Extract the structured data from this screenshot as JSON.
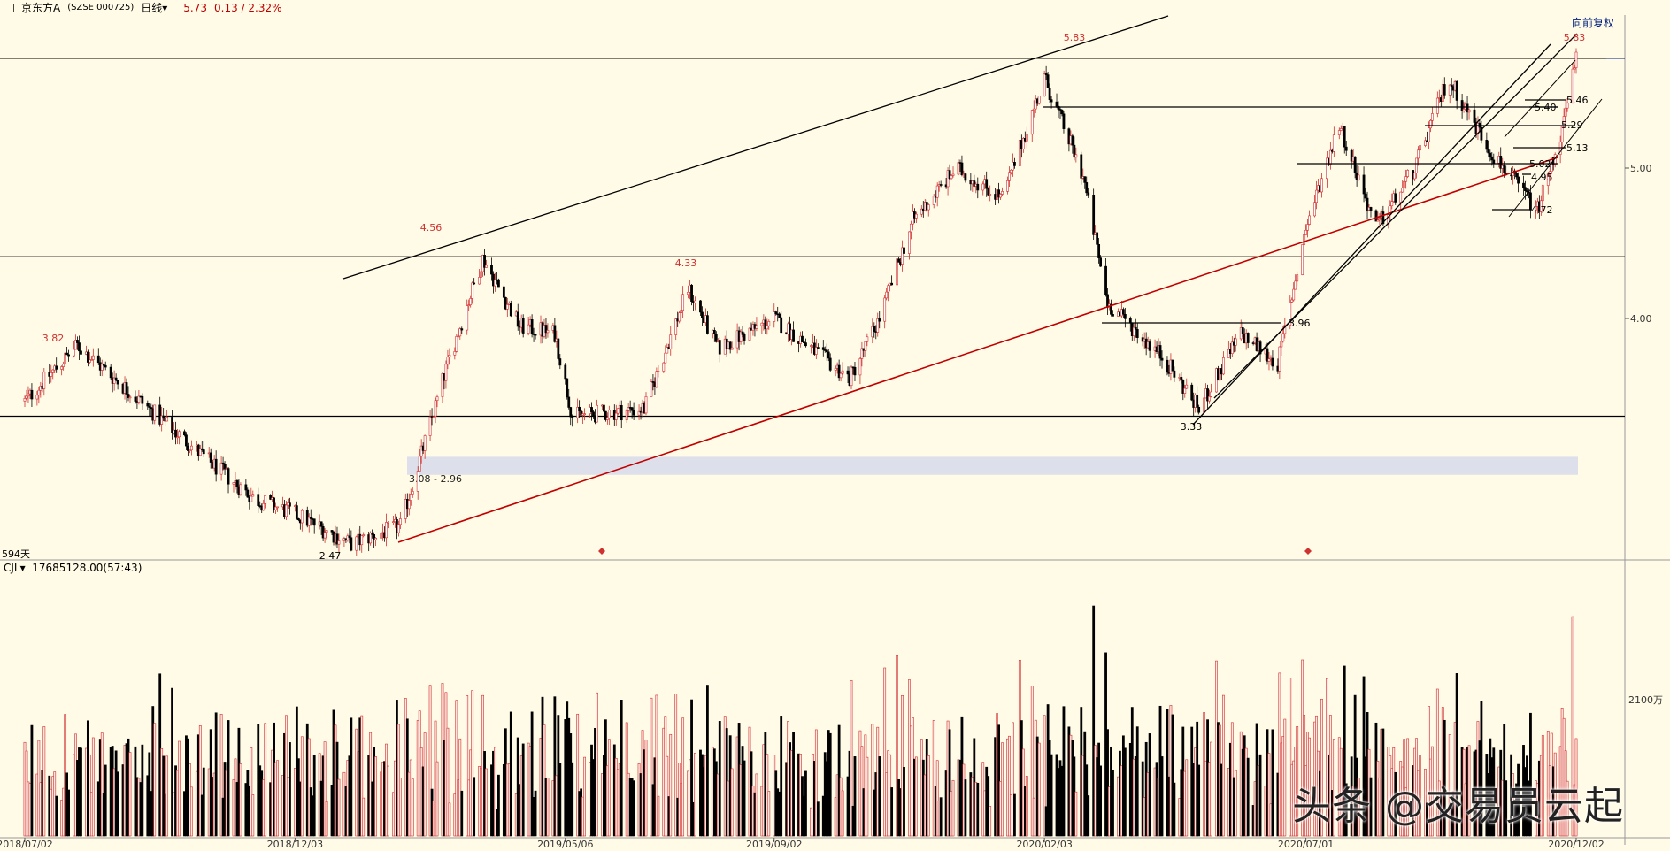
{
  "header": {
    "stock_name": "京东方A",
    "stock_code": "(SZSE 000725)",
    "period": "日线",
    "price": "5.73",
    "change": "0.13 / 2.32%"
  },
  "adjust_button": "向前复权",
  "days_label": "594天",
  "volume_indicator": {
    "name": "CJL",
    "value": "17685128.00(57:43)"
  },
  "watermark": "头条 @交易员云起",
  "colors": {
    "background": "#fffbe6",
    "up": "#d03030",
    "down": "#000000",
    "trendline": "#c00000"
  },
  "chart_data": {
    "type": "candlestick",
    "x_labels": [
      "2018/07/02",
      "2018/12/03",
      "2019/05/06",
      "2019/09/02",
      "2020/02/03",
      "2020/07/01",
      "2020/12/02"
    ],
    "y_ticks": [
      "5.00",
      "4.00"
    ],
    "volume_tick": "2100万",
    "price_range": [
      2.4,
      5.9
    ],
    "annotations": {
      "peaks": [
        "3.82",
        "4.56",
        "4.33",
        "5.83",
        "5.83"
      ],
      "lows": [
        "2.47",
        "3.33"
      ],
      "levels": [
        "3.96",
        "5.46",
        "5.40",
        "5.29",
        "5.13",
        "5.02",
        "4.95",
        "4.72"
      ],
      "gap_zone": "3.08 - 2.96"
    },
    "horizontal_levels": [
      5.73,
      4.41,
      3.35
    ],
    "price_anchors": [
      {
        "d": "2018/07/02",
        "v": 3.45
      },
      {
        "d": "2018/08/01",
        "v": 3.82
      },
      {
        "d": "2018/09/01",
        "v": 3.5
      },
      {
        "d": "2018/10/15",
        "v": 3.05
      },
      {
        "d": "2018/11/10",
        "v": 2.8
      },
      {
        "d": "2018/12/03",
        "v": 2.7
      },
      {
        "d": "2019/01/04",
        "v": 2.5
      },
      {
        "d": "2019/02/01",
        "v": 2.62
      },
      {
        "d": "2019/02/28",
        "v": 3.7
      },
      {
        "d": "2019/03/20",
        "v": 4.4
      },
      {
        "d": "2019/04/10",
        "v": 3.95
      },
      {
        "d": "2019/04/30",
        "v": 3.9
      },
      {
        "d": "2019/05/10",
        "v": 3.35
      },
      {
        "d": "2019/06/20",
        "v": 3.4
      },
      {
        "d": "2019/07/15",
        "v": 4.2
      },
      {
        "d": "2019/08/01",
        "v": 3.8
      },
      {
        "d": "2019/09/02",
        "v": 4.0
      },
      {
        "d": "2019/10/15",
        "v": 3.6
      },
      {
        "d": "2019/11/01",
        "v": 4.0
      },
      {
        "d": "2019/11/20",
        "v": 4.65
      },
      {
        "d": "2019/12/15",
        "v": 5.0
      },
      {
        "d": "2020/01/10",
        "v": 4.8
      },
      {
        "d": "2020/02/03",
        "v": 5.6
      },
      {
        "d": "2020/02/25",
        "v": 4.95
      },
      {
        "d": "2020/03/10",
        "v": 4.1
      },
      {
        "d": "2020/04/10",
        "v": 3.75
      },
      {
        "d": "2020/05/01",
        "v": 3.4
      },
      {
        "d": "2020/05/25",
        "v": 3.9
      },
      {
        "d": "2020/06/15",
        "v": 3.7
      },
      {
        "d": "2020/07/01",
        "v": 4.6
      },
      {
        "d": "2020/07/20",
        "v": 5.3
      },
      {
        "d": "2020/08/10",
        "v": 4.6
      },
      {
        "d": "2020/09/01",
        "v": 5.0
      },
      {
        "d": "2020/09/20",
        "v": 5.6
      },
      {
        "d": "2020/10/15",
        "v": 5.1
      },
      {
        "d": "2020/11/10",
        "v": 4.72
      },
      {
        "d": "2020/11/25",
        "v": 5.3
      },
      {
        "d": "2020/12/02",
        "v": 5.73
      }
    ]
  }
}
